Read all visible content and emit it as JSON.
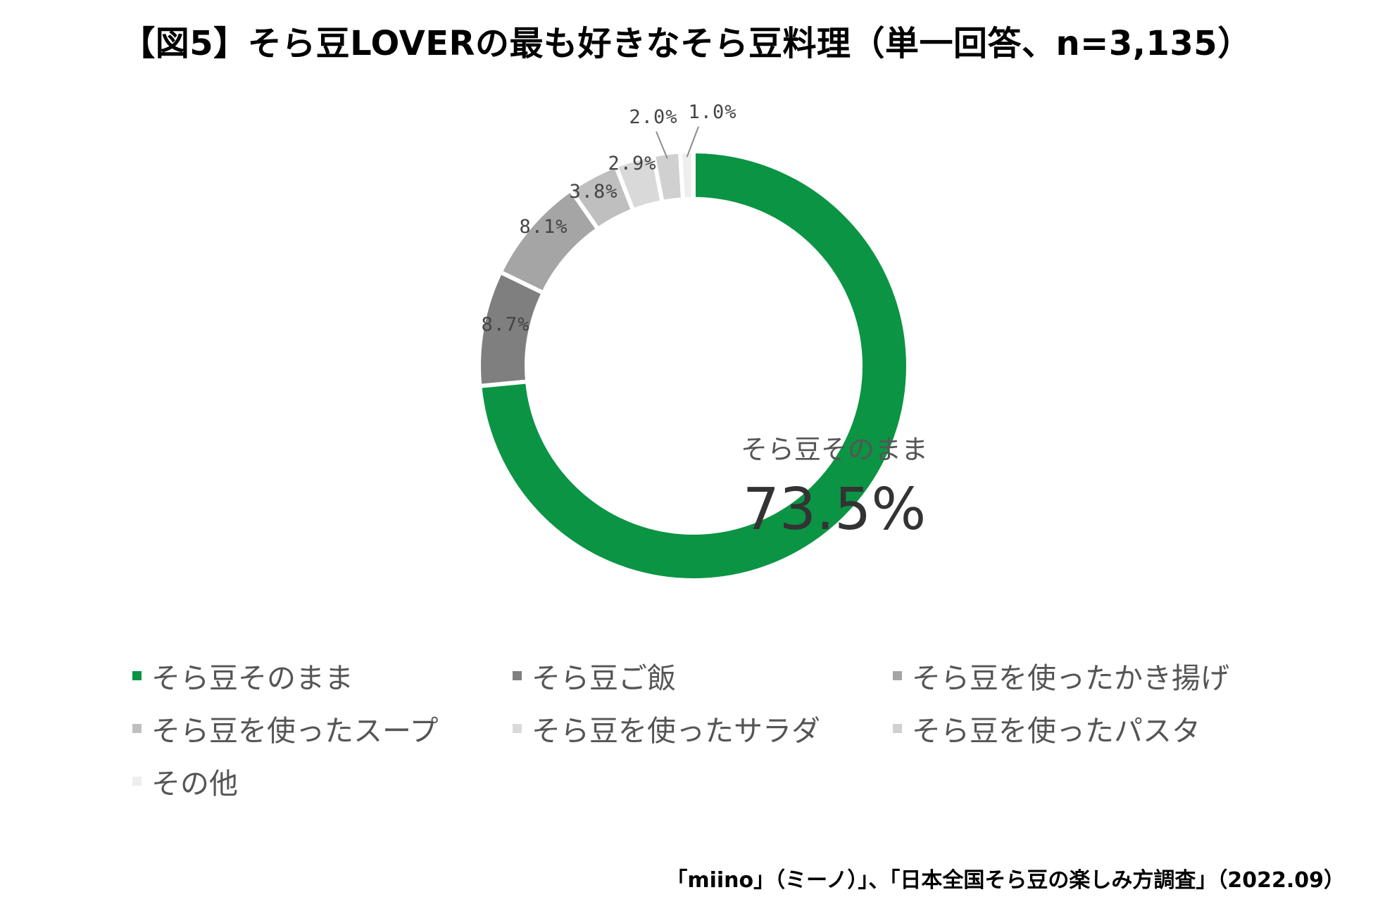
{
  "title": "【図5】そら豆LOVERの最も好きなそら豆料理（単一回答、n=3,135）",
  "source": "「miino」（ミーノ）」、「日本全国そら豆の楽しみ方調査」（2022.09）",
  "chart_data": {
    "type": "pie",
    "title": "【図5】そら豆LOVERの最も好きなそら豆料理（単一回答、n=3,135）",
    "legend_position": "bottom",
    "categories": [
      "そら豆そのまま",
      "そら豆ご飯",
      "そら豆を使ったかき揚げ",
      "そら豆を使ったスープ",
      "そら豆を使ったサラダ",
      "そら豆を使ったパスタ",
      "その他"
    ],
    "values": [
      73.5,
      8.7,
      8.1,
      3.8,
      2.9,
      2.0,
      1.0
    ],
    "value_labels": [
      "73.5%",
      "8.7%",
      "8.1%",
      "3.8%",
      "2.9%",
      "2.0%",
      "1.0%"
    ],
    "colors": [
      "#0b9444",
      "#7f7f7f",
      "#a5a5a5",
      "#bfbfbf",
      "#d9d9d9",
      "#d0d0d0",
      "#eeeeee"
    ]
  }
}
